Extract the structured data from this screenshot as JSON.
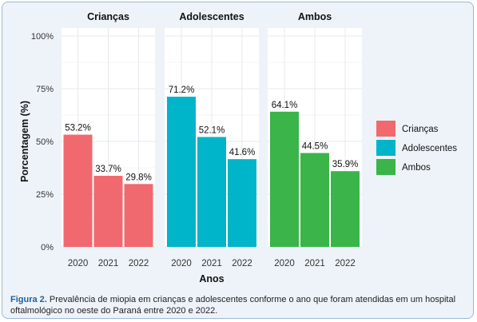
{
  "chart_data": {
    "type": "bar",
    "ylabel": "Porcentagem (%)",
    "xlabel": "Anos",
    "ylim": [
      0,
      100
    ],
    "yticks": [
      "0%",
      "25%",
      "50%",
      "75%",
      "100%"
    ],
    "grid": true,
    "legend_position": "right",
    "categories": [
      "2020",
      "2021",
      "2022"
    ],
    "panels": [
      {
        "title": "Crianças",
        "color": "#f0696e",
        "values": [
          53.2,
          33.7,
          29.8
        ],
        "labels": [
          "53.2%",
          "33.7%",
          "29.8%"
        ]
      },
      {
        "title": "Adolescentes",
        "color": "#00b5c9",
        "values": [
          71.2,
          52.1,
          41.6
        ],
        "labels": [
          "71.2%",
          "52.1%",
          "41.6%"
        ]
      },
      {
        "title": "Ambos",
        "color": "#3bb44a",
        "values": [
          64.1,
          44.5,
          35.9
        ],
        "labels": [
          "64.1%",
          "44.5%",
          "35.9%"
        ]
      }
    ],
    "legend": [
      {
        "name": "Crianças",
        "color": "#f0696e"
      },
      {
        "name": "Adolescentes",
        "color": "#00b5c9"
      },
      {
        "name": "Ambos",
        "color": "#3bb44a"
      }
    ]
  },
  "caption": {
    "label": "Figura 2.",
    "text": " Prevalência de miopia em crianças e adolescentes conforme o ano que foram atendidas em um hospital oftalmológico no oeste do Paraná entre 2020 e 2022."
  }
}
